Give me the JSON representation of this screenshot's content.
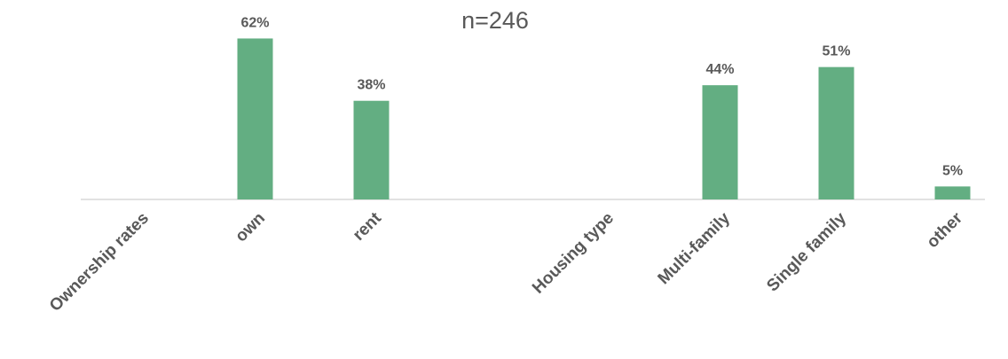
{
  "chart_data": {
    "type": "bar",
    "title": "n=246",
    "categories": [
      "Ownership rates",
      "own",
      "rent",
      null,
      "Housing type",
      "Multi-family",
      "Single family",
      "other"
    ],
    "values": [
      null,
      62,
      38,
      null,
      null,
      44,
      51,
      5
    ],
    "value_labels": [
      null,
      "62%",
      "38%",
      null,
      null,
      "44%",
      "51%",
      "5%"
    ],
    "color": "#63ae82",
    "ylim": [
      0,
      70
    ]
  }
}
